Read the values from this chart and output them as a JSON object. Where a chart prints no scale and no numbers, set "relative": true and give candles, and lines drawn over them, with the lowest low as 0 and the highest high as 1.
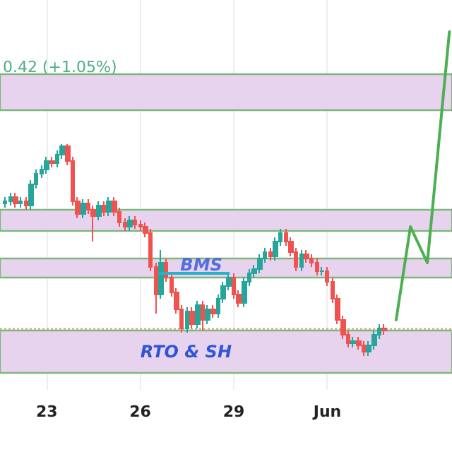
{
  "chart_data": {
    "type": "candlestick",
    "relative": true,
    "grid": "x",
    "annotations": [
      "0.42 (+1.05%)",
      {
        "text": "BMS",
        "x": "--05-27T23:00",
        "y": 0.43
      }
    ],
    "xlim": [
      "--05-21T12:00",
      "--06-05T00:00"
    ],
    "xticks": [
      {
        "value": "--05-23",
        "label": "23"
      },
      {
        "value": "--05-26",
        "label": "26"
      },
      {
        "value": "--05-29",
        "label": "29"
      },
      {
        "value": "--06-01",
        "label": "Jun"
      }
    ],
    "x": [
      "--05-21T16:00",
      "--05-21T20:00",
      "--05-22T00:00",
      "--05-22T04:00",
      "--05-22T08:00",
      "--05-22T12:00",
      "--05-22T16:00",
      "--05-22T20:00",
      "--05-23T00:00",
      "--05-23T04:00",
      "--05-23T08:00",
      "--05-23T12:00",
      "--05-23T16:00",
      "--05-23T20:00",
      "--05-24T00:00",
      "--05-24T04:00",
      "--05-24T08:00",
      "--05-24T12:00",
      "--05-24T16:00",
      "--05-24T20:00",
      "--05-25T00:00",
      "--05-25T04:00",
      "--05-25T08:00",
      "--05-25T12:00",
      "--05-25T16:00",
      "--05-25T20:00",
      "--05-26T00:00",
      "--05-26T04:00",
      "--05-26T08:00",
      "--05-26T12:00",
      "--05-26T16:00",
      "--05-26T20:00",
      "--05-27T00:00",
      "--05-27T04:00",
      "--05-27T08:00",
      "--05-27T12:00",
      "--05-27T16:00",
      "--05-27T20:00",
      "--05-28T00:00",
      "--05-28T04:00",
      "--05-28T08:00",
      "--05-28T12:00",
      "--05-28T16:00",
      "--05-28T20:00",
      "--05-29T00:00",
      "--05-29T04:00",
      "--05-29T08:00",
      "--05-29T12:00",
      "--05-29T16:00",
      "--05-29T20:00",
      "--05-30T00:00",
      "--05-30T04:00",
      "--05-30T08:00",
      "--05-30T12:00",
      "--05-30T16:00",
      "--05-30T20:00",
      "--05-31T00:00",
      "--05-31T04:00",
      "--05-31T08:00",
      "--05-31T12:00",
      "--05-31T16:00",
      "--05-31T20:00",
      "--06-01T00:00",
      "--06-01T04:00",
      "--06-01T08:00",
      "--06-01T12:00",
      "--06-01T16:00",
      "--06-01T20:00",
      "--06-02T00:00",
      "--06-02T04:00",
      "--06-02T08:00",
      "--06-02T12:00",
      "--06-02T16:00",
      "--06-02T20:00"
    ],
    "ohlc": [
      [
        0.72,
        0.75,
        0.7,
        0.73
      ],
      [
        0.73,
        0.77,
        0.71,
        0.75
      ],
      [
        0.75,
        0.77,
        0.7,
        0.72
      ],
      [
        0.72,
        0.75,
        0.7,
        0.73
      ],
      [
        0.73,
        0.75,
        0.69,
        0.71
      ],
      [
        0.71,
        0.83,
        0.69,
        0.81
      ],
      [
        0.81,
        0.88,
        0.79,
        0.86
      ],
      [
        0.86,
        0.9,
        0.84,
        0.88
      ],
      [
        0.88,
        0.94,
        0.86,
        0.92
      ],
      [
        0.92,
        0.94,
        0.89,
        0.91
      ],
      [
        0.91,
        0.97,
        0.89,
        0.95
      ],
      [
        0.95,
        1.0,
        0.93,
        0.99
      ],
      [
        0.99,
        1.0,
        0.9,
        0.92
      ],
      [
        0.92,
        0.94,
        0.71,
        0.73
      ],
      [
        0.73,
        0.75,
        0.65,
        0.67
      ],
      [
        0.67,
        0.74,
        0.65,
        0.72
      ],
      [
        0.72,
        0.74,
        0.67,
        0.69
      ],
      [
        0.69,
        0.71,
        0.54,
        0.66
      ],
      [
        0.66,
        0.73,
        0.64,
        0.71
      ],
      [
        0.71,
        0.73,
        0.66,
        0.68
      ],
      [
        0.68,
        0.75,
        0.66,
        0.73
      ],
      [
        0.73,
        0.75,
        0.66,
        0.68
      ],
      [
        0.68,
        0.7,
        0.61,
        0.63
      ],
      [
        0.63,
        0.65,
        0.59,
        0.61
      ],
      [
        0.61,
        0.66,
        0.59,
        0.64
      ],
      [
        0.64,
        0.66,
        0.6,
        0.62
      ],
      [
        0.62,
        0.64,
        0.59,
        0.61
      ],
      [
        0.61,
        0.63,
        0.56,
        0.58
      ],
      [
        0.58,
        0.6,
        0.4,
        0.42
      ],
      [
        0.42,
        0.44,
        0.2,
        0.29
      ],
      [
        0.29,
        0.5,
        0.27,
        0.44
      ],
      [
        0.44,
        0.46,
        0.35,
        0.37
      ],
      [
        0.37,
        0.39,
        0.28,
        0.3
      ],
      [
        0.3,
        0.32,
        0.2,
        0.22
      ],
      [
        0.22,
        0.24,
        0.11,
        0.13
      ],
      [
        0.13,
        0.23,
        0.11,
        0.21
      ],
      [
        0.21,
        0.23,
        0.13,
        0.15
      ],
      [
        0.15,
        0.26,
        0.13,
        0.24
      ],
      [
        0.24,
        0.26,
        0.12,
        0.17
      ],
      [
        0.17,
        0.24,
        0.15,
        0.22
      ],
      [
        0.22,
        0.24,
        0.18,
        0.2
      ],
      [
        0.2,
        0.29,
        0.18,
        0.27
      ],
      [
        0.27,
        0.35,
        0.25,
        0.33
      ],
      [
        0.33,
        0.39,
        0.31,
        0.37
      ],
      [
        0.37,
        0.39,
        0.27,
        0.29
      ],
      [
        0.29,
        0.31,
        0.23,
        0.25
      ],
      [
        0.25,
        0.37,
        0.23,
        0.35
      ],
      [
        0.35,
        0.41,
        0.33,
        0.39
      ],
      [
        0.39,
        0.43,
        0.37,
        0.41
      ],
      [
        0.41,
        0.48,
        0.39,
        0.46
      ],
      [
        0.46,
        0.51,
        0.44,
        0.49
      ],
      [
        0.49,
        0.51,
        0.45,
        0.47
      ],
      [
        0.47,
        0.56,
        0.45,
        0.54
      ],
      [
        0.54,
        0.6,
        0.52,
        0.58
      ],
      [
        0.58,
        0.6,
        0.52,
        0.54
      ],
      [
        0.54,
        0.56,
        0.47,
        0.49
      ],
      [
        0.49,
        0.51,
        0.4,
        0.42
      ],
      [
        0.42,
        0.5,
        0.4,
        0.48
      ],
      [
        0.48,
        0.5,
        0.44,
        0.46
      ],
      [
        0.46,
        0.48,
        0.42,
        0.44
      ],
      [
        0.44,
        0.46,
        0.38,
        0.4
      ],
      [
        0.4,
        0.42,
        0.38,
        0.4
      ],
      [
        0.4,
        0.42,
        0.33,
        0.35
      ],
      [
        0.35,
        0.37,
        0.25,
        0.27
      ],
      [
        0.27,
        0.29,
        0.15,
        0.17
      ],
      [
        0.17,
        0.19,
        0.08,
        0.1
      ],
      [
        0.1,
        0.12,
        0.04,
        0.06
      ],
      [
        0.06,
        0.09,
        0.04,
        0.07
      ],
      [
        0.07,
        0.09,
        0.03,
        0.05
      ],
      [
        0.05,
        0.07,
        0.0,
        0.02
      ],
      [
        0.02,
        0.07,
        0.0,
        0.05
      ],
      [
        0.05,
        0.12,
        0.03,
        0.1
      ],
      [
        0.1,
        0.15,
        0.08,
        0.13
      ],
      [
        0.13,
        0.15,
        0.1,
        0.12
      ]
    ],
    "series": [
      {
        "type": "line",
        "color": "#2ab0c8",
        "x": [
          "--05-26T15:00",
          "--05-28T20:00"
        ],
        "values": [
          0.39,
          0.39
        ]
      },
      {
        "type": "line",
        "color": "#4caf50",
        "x": [
          "--06-03T05:00",
          "--06-03T16:00",
          "--06-04T05:00",
          "--06-04T22:00"
        ],
        "values": [
          0.17,
          0.61,
          0.44,
          1.53
        ]
      }
    ],
    "bands": [
      {
        "axis": "y",
        "from": 1.16,
        "to": 1.33,
        "color": "#e8d3ef"
      },
      {
        "axis": "y",
        "from": 0.59,
        "to": 0.69,
        "color": "#e8d3ef"
      },
      {
        "axis": "y",
        "from": 0.37,
        "to": 0.46,
        "color": "#e8d3ef"
      },
      {
        "axis": "y",
        "from": -0.08,
        "to": 0.12,
        "color": "#e8d3ef",
        "label": "RTO & SH"
      }
    ],
    "ref_lines": [
      {
        "axis": "y",
        "value": 0.13,
        "color": "#c9b48a",
        "line_style": "dotted"
      }
    ]
  }
}
